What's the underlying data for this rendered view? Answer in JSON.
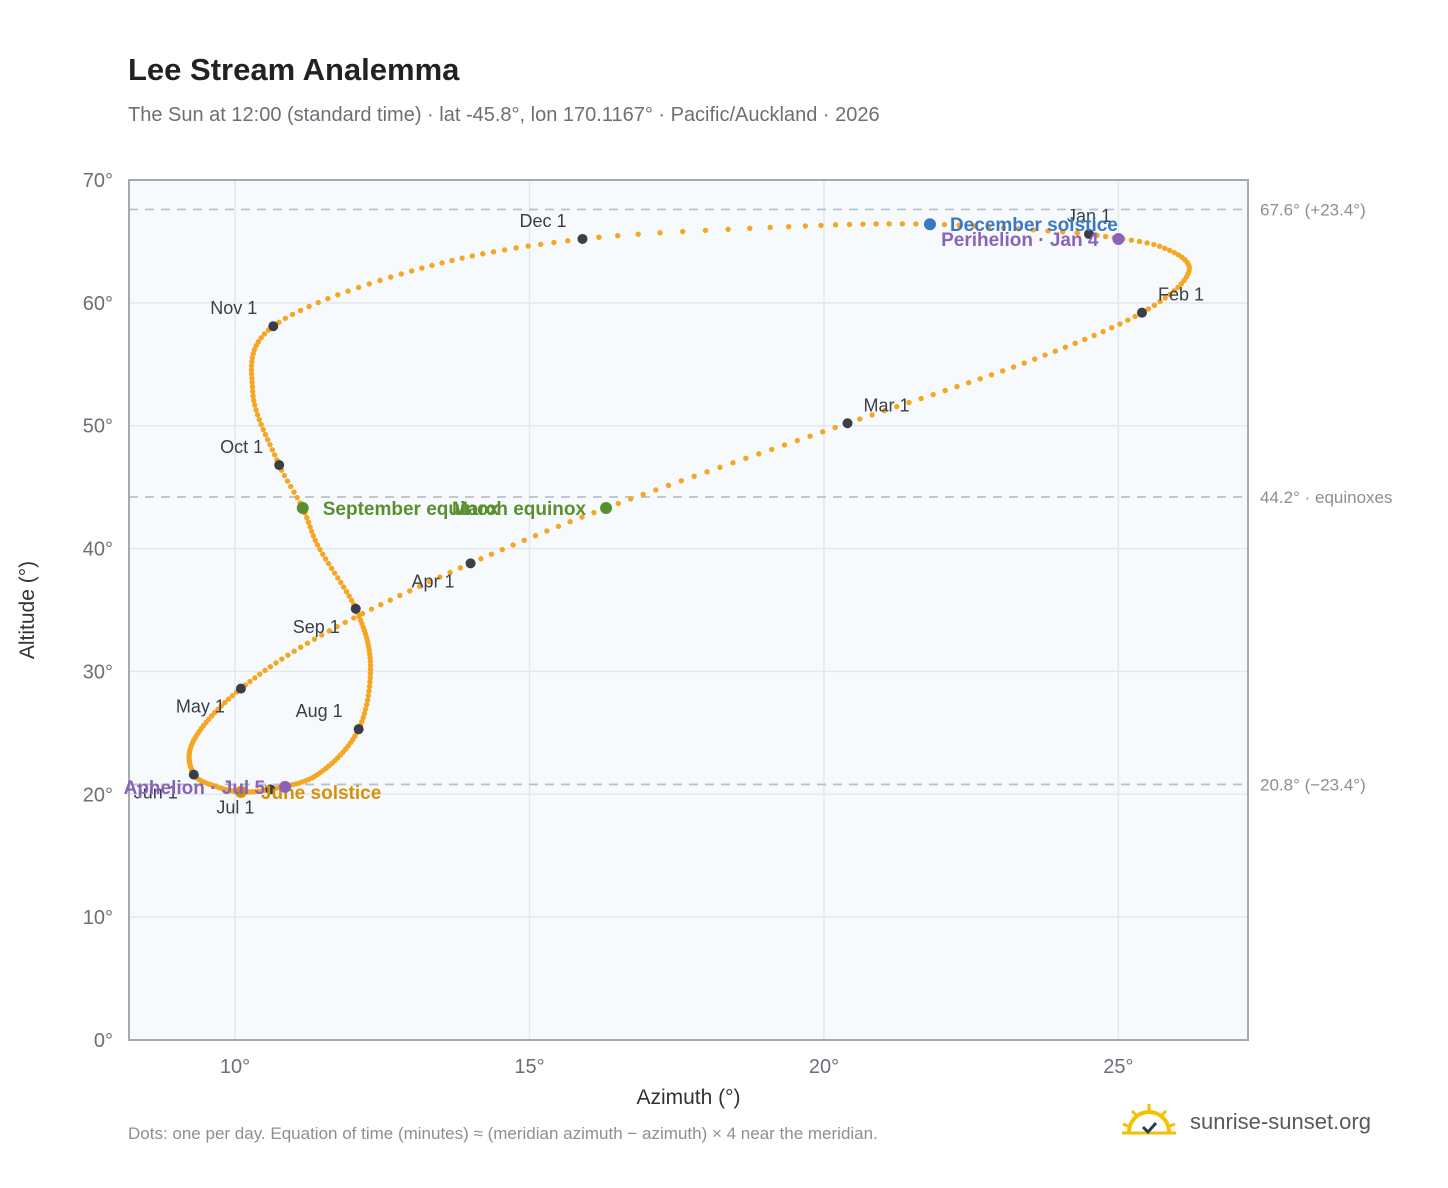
{
  "title": "Lee Stream Analemma",
  "subtitle": "The Sun at 12:00 (standard time) · lat -45.8°, lon 170.1167° · Pacific/Auckland · 2026",
  "footnote": "Dots: one per day. Equation of time (minutes) ≈ (meridian azimuth − azimuth) × 4 near the meridian.",
  "brand": {
    "name": "sunrise-sunset.org",
    "logo_icon": "sun-check-icon"
  },
  "colors": {
    "curve": "#f5a623",
    "month_dot": "#3a3f47",
    "equinox": "#5a8f2e",
    "december_solstice": "#3c78c0",
    "june_solstice": "#d4920a",
    "perihelion_aphelion": "#8a63b8",
    "reference_line": "#b8c0c8",
    "plot_bg": "#f7fafd",
    "grid": "#e3e8ee"
  },
  "chart_data": {
    "type": "scatter",
    "xlabel": "Azimuth (°)",
    "ylabel": "Altitude (°)",
    "xlim": [
      8.2,
      27.2
    ],
    "ylim": [
      0,
      70
    ],
    "x_ticks": [
      10,
      15,
      20,
      25
    ],
    "x_tick_labels": [
      "10°",
      "15°",
      "20°",
      "25°"
    ],
    "y_ticks": [
      0,
      10,
      20,
      30,
      40,
      50,
      60,
      70
    ],
    "y_tick_labels": [
      "0°",
      "10°",
      "20°",
      "30°",
      "40°",
      "50°",
      "60°",
      "70°"
    ],
    "grid": true,
    "reference_lines": [
      {
        "y": 67.6,
        "label": "67.6° (+23.4°)"
      },
      {
        "y": 44.2,
        "label": "44.2° · equinoxes"
      },
      {
        "y": 20.8,
        "label": "20.8° (−23.4°)"
      }
    ],
    "path_knots": [
      {
        "day": 1,
        "az": 24.5,
        "alt": 65.6
      },
      {
        "day": 10,
        "az": 25.7,
        "alt": 64.6
      },
      {
        "day": 20,
        "az": 26.2,
        "alt": 62.6
      },
      {
        "day": 32,
        "az": 25.4,
        "alt": 59.2
      },
      {
        "day": 45,
        "az": 23.4,
        "alt": 55.1
      },
      {
        "day": 60,
        "az": 20.4,
        "alt": 50.2
      },
      {
        "day": 79,
        "az": 16.3,
        "alt": 43.3
      },
      {
        "day": 91,
        "az": 14.0,
        "alt": 38.8
      },
      {
        "day": 106,
        "az": 11.6,
        "alt": 33.3
      },
      {
        "day": 121,
        "az": 10.1,
        "alt": 28.6
      },
      {
        "day": 137,
        "az": 9.3,
        "alt": 24.4
      },
      {
        "day": 152,
        "az": 9.3,
        "alt": 21.6
      },
      {
        "day": 162,
        "az": 9.7,
        "alt": 20.6
      },
      {
        "day": 172,
        "az": 10.1,
        "alt": 20.2
      },
      {
        "day": 182,
        "az": 10.6,
        "alt": 20.4
      },
      {
        "day": 197,
        "az": 11.4,
        "alt": 21.6
      },
      {
        "day": 213,
        "az": 12.1,
        "alt": 25.3
      },
      {
        "day": 228,
        "az": 12.3,
        "alt": 30.5
      },
      {
        "day": 244,
        "az": 12.05,
        "alt": 35.1
      },
      {
        "day": 258,
        "az": 11.4,
        "alt": 40.3
      },
      {
        "day": 266,
        "az": 11.15,
        "alt": 43.3
      },
      {
        "day": 274,
        "az": 10.75,
        "alt": 46.8
      },
      {
        "day": 289,
        "az": 10.3,
        "alt": 52.8
      },
      {
        "day": 305,
        "az": 10.65,
        "alt": 58.1
      },
      {
        "day": 320,
        "az": 13.0,
        "alt": 62.6
      },
      {
        "day": 335,
        "az": 15.9,
        "alt": 65.2
      },
      {
        "day": 345,
        "az": 19.4,
        "alt": 66.2
      },
      {
        "day": 355,
        "az": 21.8,
        "alt": 66.4
      },
      {
        "day": 365,
        "az": 24.3,
        "alt": 65.7
      },
      {
        "day": 366,
        "az": 24.5,
        "alt": 65.6
      }
    ],
    "month_markers": [
      {
        "label": "Jan 1",
        "az": 24.5,
        "alt": 65.6,
        "label_pos": "top"
      },
      {
        "label": "Feb 1",
        "az": 25.4,
        "alt": 59.2,
        "label_pos": "top-right"
      },
      {
        "label": "Mar 1",
        "az": 20.4,
        "alt": 50.2,
        "label_pos": "top-right"
      },
      {
        "label": "Apr 1",
        "az": 14.0,
        "alt": 38.8,
        "label_pos": "bottom-left"
      },
      {
        "label": "May 1",
        "az": 10.1,
        "alt": 28.6,
        "label_pos": "bottom-left"
      },
      {
        "label": "Jun 1",
        "az": 9.3,
        "alt": 21.6,
        "label_pos": "bottom-left"
      },
      {
        "label": "Jul 1",
        "az": 10.6,
        "alt": 20.4,
        "label_pos": "bottom-left"
      },
      {
        "label": "Aug 1",
        "az": 12.1,
        "alt": 25.3,
        "label_pos": "top-left"
      },
      {
        "label": "Sep 1",
        "az": 12.05,
        "alt": 35.1,
        "label_pos": "bottom-left"
      },
      {
        "label": "Oct 1",
        "az": 10.75,
        "alt": 46.8,
        "label_pos": "top-left"
      },
      {
        "label": "Nov 1",
        "az": 10.65,
        "alt": 58.1,
        "label_pos": "top-left"
      },
      {
        "label": "Dec 1",
        "az": 15.9,
        "alt": 65.2,
        "label_pos": "top-left"
      }
    ],
    "events": [
      {
        "label": "March equinox",
        "az": 16.3,
        "alt": 43.3,
        "color_key": "equinox",
        "label_pos": "left"
      },
      {
        "label": "September equinox",
        "az": 11.15,
        "alt": 43.3,
        "color_key": "equinox",
        "label_pos": "right"
      },
      {
        "label": "December solstice",
        "az": 21.8,
        "alt": 66.4,
        "color_key": "december_solstice",
        "label_pos": "right"
      },
      {
        "label": "June solstice",
        "az": 10.1,
        "alt": 20.2,
        "color_key": "june_solstice",
        "label_pos": "right"
      },
      {
        "label": "Perihelion · Jan 4",
        "az": 25.0,
        "alt": 65.2,
        "color_key": "perihelion_aphelion",
        "label_pos": "left"
      },
      {
        "label": "Aphelion · Jul 5",
        "az": 10.85,
        "alt": 20.6,
        "color_key": "perihelion_aphelion",
        "label_pos": "left"
      }
    ]
  }
}
